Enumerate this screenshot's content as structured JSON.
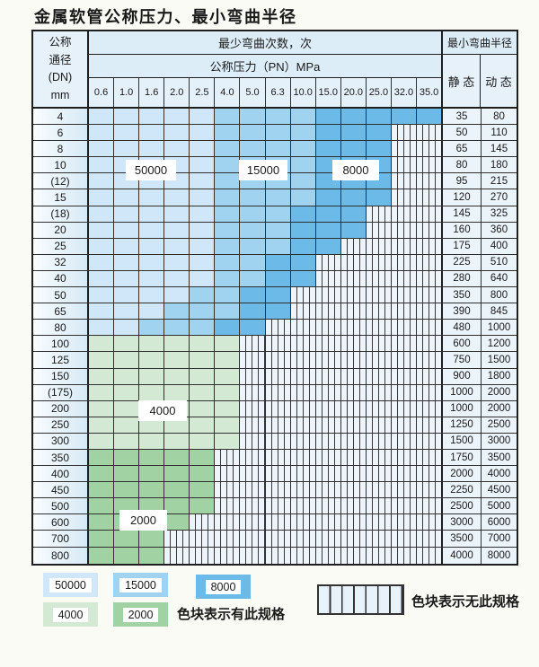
{
  "title": "金属软管公称压力、最小弯曲半径",
  "header": {
    "dn_lines": [
      "公称",
      "通径",
      "(DN)",
      "mm"
    ],
    "bend_cycles_label": "最少弯曲次数，次",
    "pressure_label": "公称压力（PN）MPa",
    "min_radius_label": "最小弯曲半径",
    "static_label": "静 态",
    "dynamic_label": "动 态"
  },
  "chart_data": {
    "type": "heatmap",
    "title": "金属软管公称压力、最小弯曲半径",
    "x_label": "公称压力（PN）MPa",
    "x_categories": [
      "0.6",
      "1.0",
      "1.6",
      "2.0",
      "2.5",
      "4.0",
      "5.0",
      "6.3",
      "10.0",
      "15.0",
      "20.0",
      "25.0",
      "32.0",
      "35.0"
    ],
    "y_label": "公称通径(DN) mm",
    "cell_value_meaning": "最少弯曲次数，次 (bands give cycle count; columns are 1-based indexes into x_categories; columns beyond last band have no specification)",
    "rows": [
      {
        "dn": "4",
        "bands": [
          [
            50000,
            1,
            5
          ],
          [
            15000,
            6,
            9
          ],
          [
            8000,
            10,
            14
          ]
        ],
        "static": "35",
        "dynamic": "80"
      },
      {
        "dn": "6",
        "bands": [
          [
            50000,
            1,
            5
          ],
          [
            15000,
            6,
            9
          ],
          [
            8000,
            10,
            12
          ]
        ],
        "static": "50",
        "dynamic": "110"
      },
      {
        "dn": "8",
        "bands": [
          [
            50000,
            1,
            5
          ],
          [
            15000,
            6,
            9
          ],
          [
            8000,
            10,
            12
          ]
        ],
        "static": "65",
        "dynamic": "145"
      },
      {
        "dn": "10",
        "bands": [
          [
            50000,
            1,
            5
          ],
          [
            15000,
            6,
            9
          ],
          [
            8000,
            10,
            12
          ]
        ],
        "static": "80",
        "dynamic": "180"
      },
      {
        "dn": "(12)",
        "bands": [
          [
            50000,
            1,
            5
          ],
          [
            15000,
            6,
            9
          ],
          [
            8000,
            10,
            12
          ]
        ],
        "static": "95",
        "dynamic": "215"
      },
      {
        "dn": "15",
        "bands": [
          [
            50000,
            1,
            5
          ],
          [
            15000,
            6,
            9
          ],
          [
            8000,
            10,
            12
          ]
        ],
        "static": "120",
        "dynamic": "270"
      },
      {
        "dn": "(18)",
        "bands": [
          [
            50000,
            1,
            5
          ],
          [
            15000,
            6,
            8
          ],
          [
            8000,
            9,
            11
          ]
        ],
        "static": "145",
        "dynamic": "325"
      },
      {
        "dn": "20",
        "bands": [
          [
            50000,
            1,
            5
          ],
          [
            15000,
            6,
            8
          ],
          [
            8000,
            9,
            11
          ]
        ],
        "static": "160",
        "dynamic": "360"
      },
      {
        "dn": "25",
        "bands": [
          [
            50000,
            1,
            5
          ],
          [
            15000,
            6,
            8
          ],
          [
            8000,
            9,
            10
          ]
        ],
        "static": "175",
        "dynamic": "400"
      },
      {
        "dn": "32",
        "bands": [
          [
            50000,
            1,
            5
          ],
          [
            15000,
            6,
            7
          ],
          [
            8000,
            8,
            9
          ]
        ],
        "static": "225",
        "dynamic": "510"
      },
      {
        "dn": "40",
        "bands": [
          [
            50000,
            1,
            5
          ],
          [
            15000,
            6,
            7
          ],
          [
            8000,
            8,
            9
          ]
        ],
        "static": "280",
        "dynamic": "640"
      },
      {
        "dn": "50",
        "bands": [
          [
            50000,
            1,
            4
          ],
          [
            15000,
            5,
            6
          ],
          [
            8000,
            7,
            8
          ]
        ],
        "static": "350",
        "dynamic": "800"
      },
      {
        "dn": "65",
        "bands": [
          [
            50000,
            1,
            3
          ],
          [
            15000,
            4,
            6
          ],
          [
            8000,
            7,
            8
          ]
        ],
        "static": "390",
        "dynamic": "845"
      },
      {
        "dn": "80",
        "bands": [
          [
            50000,
            1,
            2
          ],
          [
            15000,
            3,
            5
          ],
          [
            8000,
            6,
            7
          ]
        ],
        "static": "480",
        "dynamic": "1000"
      },
      {
        "dn": "100",
        "bands": [
          [
            4000,
            1,
            6
          ]
        ],
        "static": "600",
        "dynamic": "1200"
      },
      {
        "dn": "125",
        "bands": [
          [
            4000,
            1,
            6
          ]
        ],
        "static": "750",
        "dynamic": "1500"
      },
      {
        "dn": "150",
        "bands": [
          [
            4000,
            1,
            6
          ]
        ],
        "static": "900",
        "dynamic": "1800"
      },
      {
        "dn": "(175)",
        "bands": [
          [
            4000,
            1,
            6
          ]
        ],
        "static": "1000",
        "dynamic": "2000"
      },
      {
        "dn": "200",
        "bands": [
          [
            4000,
            1,
            6
          ]
        ],
        "static": "1000",
        "dynamic": "2000"
      },
      {
        "dn": "250",
        "bands": [
          [
            4000,
            1,
            6
          ]
        ],
        "static": "1250",
        "dynamic": "2500"
      },
      {
        "dn": "300",
        "bands": [
          [
            4000,
            1,
            6
          ]
        ],
        "static": "1500",
        "dynamic": "3000"
      },
      {
        "dn": "350",
        "bands": [
          [
            2000,
            1,
            5
          ]
        ],
        "static": "1750",
        "dynamic": "3500"
      },
      {
        "dn": "400",
        "bands": [
          [
            2000,
            1,
            5
          ]
        ],
        "static": "2000",
        "dynamic": "4000"
      },
      {
        "dn": "450",
        "bands": [
          [
            2000,
            1,
            5
          ]
        ],
        "static": "2250",
        "dynamic": "4500"
      },
      {
        "dn": "500",
        "bands": [
          [
            2000,
            1,
            5
          ]
        ],
        "static": "2500",
        "dynamic": "5000"
      },
      {
        "dn": "600",
        "bands": [
          [
            2000,
            1,
            4
          ]
        ],
        "static": "3000",
        "dynamic": "6000"
      },
      {
        "dn": "700",
        "bands": [
          [
            2000,
            1,
            3
          ]
        ],
        "static": "3500",
        "dynamic": "7000"
      },
      {
        "dn": "800",
        "bands": [
          [
            2000,
            1,
            3
          ]
        ],
        "static": "4000",
        "dynamic": "8000"
      }
    ]
  },
  "region_labels": [
    "50000",
    "15000",
    "8000",
    "4000",
    "2000"
  ],
  "legend": {
    "items": [
      {
        "label": "50000"
      },
      {
        "label": "15000"
      },
      {
        "label": "8000"
      },
      {
        "label": "4000"
      },
      {
        "label": "2000"
      }
    ],
    "has_spec_text": "色块表示有此规格",
    "no_spec_text": "色块表示无此规格"
  },
  "colors": {
    "c50000": "#cfe7f8",
    "c15000": "#a0d3f0",
    "c8000": "#6cbae7",
    "c4000": "#d4e9d4",
    "c2000": "#a0d2a3",
    "no_spec_bg": "#edf4fb",
    "grid": "#2f2f2f",
    "header_bg": "#ddedf8"
  }
}
